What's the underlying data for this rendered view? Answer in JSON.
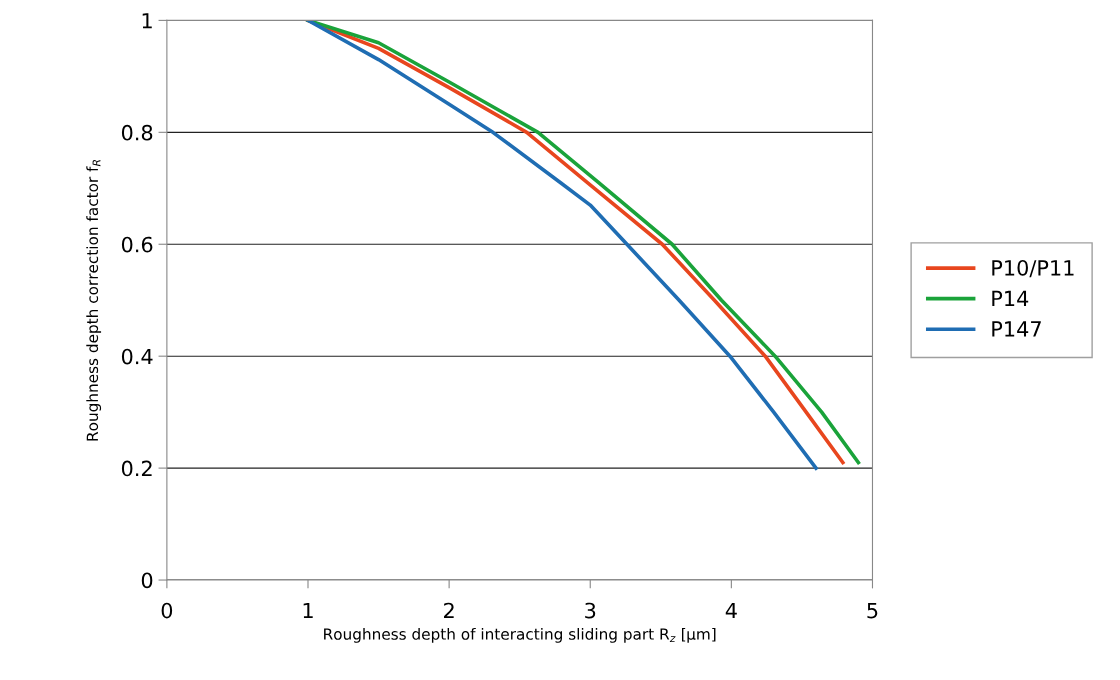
{
  "chart_data": {
    "type": "line",
    "xlabel": "Roughness depth of interacting sliding part R$_{z}$ [µm]",
    "ylabel": "Roughness depth correction factor f$_{R}$",
    "xlim": [
      0,
      5
    ],
    "xticks": [
      0,
      1,
      2,
      3,
      4,
      5
    ],
    "ylim": [
      0,
      1
    ],
    "yticks": [
      0,
      0.2,
      0.4,
      0.6,
      0.8,
      1
    ],
    "grid": "y",
    "legend": "right",
    "marker": "none",
    "line_style": "solid",
    "series": [
      {
        "name": "P10/P11",
        "color": "#e8461e",
        "x": [
          1,
          1.5,
          2,
          2.55,
          2.98,
          3.51,
          3.88,
          4.24,
          4.53,
          4.79
        ],
        "values": [
          1,
          0.95,
          0.88,
          0.8,
          0.71,
          0.6,
          0.5,
          0.4,
          0.3,
          0.21
        ]
      },
      {
        "name": "P14",
        "color": "#1aa33a",
        "x": [
          1,
          1.5,
          2,
          2.63,
          3.06,
          3.58,
          3.93,
          4.31,
          4.64,
          4.9
        ],
        "values": [
          1,
          0.96,
          0.89,
          0.8,
          0.71,
          0.6,
          0.5,
          0.4,
          0.3,
          0.21
        ]
      },
      {
        "name": "P147",
        "color": "#1f6db3",
        "x": [
          1,
          1.5,
          2,
          2.31,
          2.79,
          3.0,
          3.26,
          3.63,
          3.99,
          4.3,
          4.6
        ],
        "values": [
          1,
          0.93,
          0.85,
          0.8,
          0.71,
          0.67,
          0.6,
          0.5,
          0.4,
          0.3,
          0.2
        ]
      }
    ]
  }
}
